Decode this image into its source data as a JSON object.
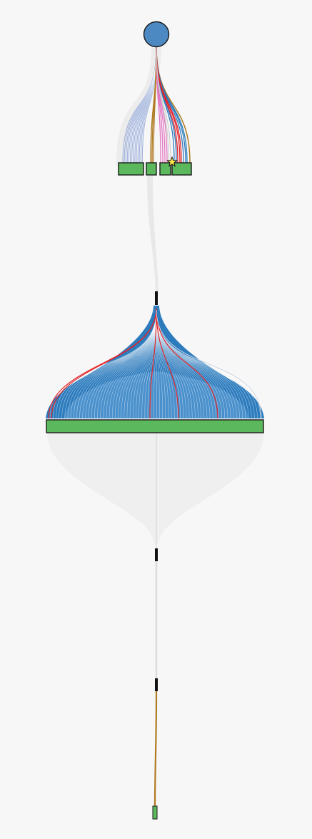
{
  "diagram": {
    "kind": "hierarchical-flow-tree",
    "background_color": "#f7f7f7",
    "colors": {
      "root": "#4c88c1",
      "leaf_box": "#5cb85c",
      "box_stroke": "#1a1a1a",
      "blue": "#2c7bbd",
      "light_blue": "#8aa1d3",
      "red": "#e2262a",
      "pink": "#e377c2",
      "gold": "#b07a22",
      "gray": "#dcdcdc",
      "gray_fill": "#efefef",
      "star": "#ffe94a"
    },
    "root": {
      "name": "root-node",
      "shape": "circle",
      "color": "#4c88c1"
    },
    "levels": [
      {
        "name": "level-1",
        "boxes": [
          {
            "name": "box-1a",
            "color": "#5cb85c"
          },
          {
            "name": "box-1b",
            "color": "#5cb85c"
          },
          {
            "name": "box-1c",
            "color": "#5cb85c"
          },
          {
            "name": "box-1d",
            "color": "#5cb85c"
          }
        ],
        "marker": {
          "name": "star-marker",
          "shape": "star",
          "color": "#ffe94a"
        },
        "flow_colors": [
          "#8aa1d3",
          "#b07a22",
          "#e377c2",
          "#e2262a",
          "#2c7bbd"
        ]
      },
      {
        "name": "level-2",
        "connector": "black-tick",
        "boxes": [
          {
            "name": "box-2-wide",
            "color": "#5cb85c"
          }
        ],
        "flow_colors": [
          "#2c7bbd",
          "#e2262a"
        ]
      },
      {
        "name": "level-3",
        "connector": "black-tick"
      },
      {
        "name": "level-4",
        "connector": "black-tick"
      },
      {
        "name": "level-5",
        "boxes": [
          {
            "name": "box-5-small",
            "color": "#5cb85c"
          }
        ],
        "flow_colors": [
          "#b07a22"
        ]
      }
    ]
  }
}
